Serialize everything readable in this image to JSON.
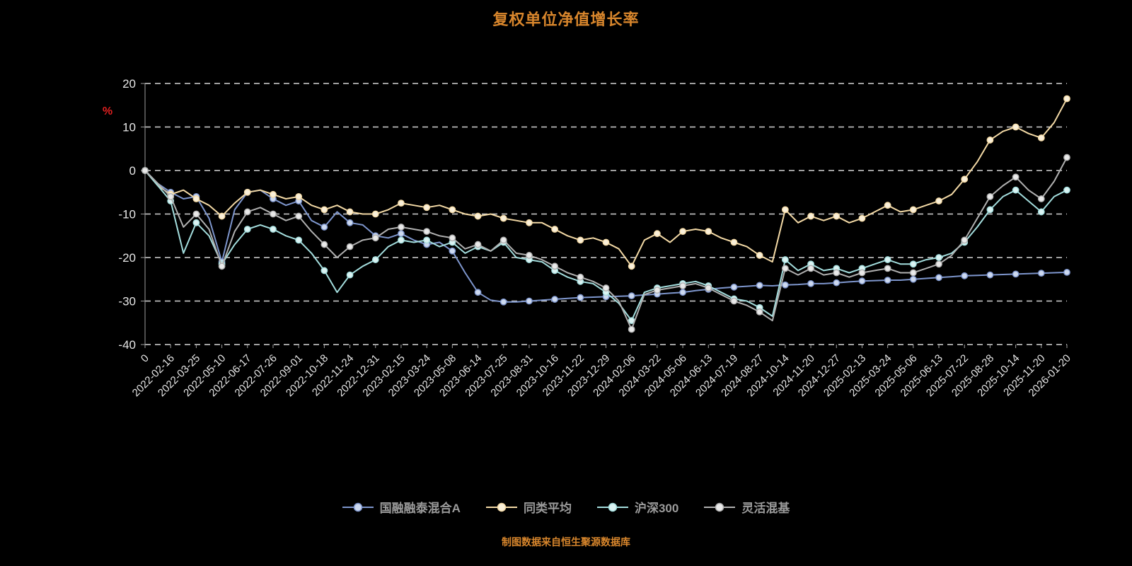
{
  "colors": {
    "background": "#000000",
    "title_text": "#d8862c",
    "source_text": "#d8862c",
    "axis_text": "#e6e6e6",
    "grid_line": "#d6d6d6",
    "axis_line": "#9e9e9e",
    "percent_label": "#e02020",
    "legend_text": "#9b9b9b"
  },
  "chart_data": {
    "type": "line",
    "title": "复权单位净值增长率",
    "source_note": "制图数据来自恒生聚源数据库",
    "ylabel": "%",
    "ylim": [
      -40,
      20
    ],
    "y_ticks": [
      20,
      10,
      0,
      -10,
      -20,
      -30,
      -40
    ],
    "grid": "horizontal-dashed",
    "legend_position": "bottom",
    "x_step_per_point": 0.5,
    "x_tick_labels": [
      "0",
      "2022-02-16",
      "2022-03-25",
      "2022-05-10",
      "2022-06-17",
      "2022-07-26",
      "2022-09-01",
      "2022-10-18",
      "2022-11-24",
      "2022-12-31",
      "2023-02-15",
      "2023-03-24",
      "2023-05-08",
      "2023-06-14",
      "2023-07-25",
      "2023-08-31",
      "2023-10-16",
      "2023-11-22",
      "2023-12-29",
      "2024-02-06",
      "2024-03-22",
      "2024-05-06",
      "2024-06-13",
      "2024-07-19",
      "2024-08-27",
      "2024-10-14",
      "2024-11-20",
      "2024-12-27",
      "2025-02-13",
      "2025-03-24",
      "2025-05-06",
      "2025-06-13",
      "2025-07-22",
      "2025-08-28",
      "2025-10-14",
      "2025-11-20",
      "2026-01-20"
    ],
    "series": [
      {
        "name": "国融融泰混合A",
        "color": "#7d95cc",
        "marker_fill": "#cdd9ef",
        "values": [
          0,
          -3,
          -5,
          -6.5,
          -6,
          -11,
          -21,
          -9,
          -5,
          -4.5,
          -6.5,
          -8,
          -7,
          -11.5,
          -13,
          -9.5,
          -12,
          -12.5,
          -15,
          -15.5,
          -14.5,
          -16,
          -17,
          -16.5,
          -18.5,
          -23.5,
          -28,
          -29.8,
          -30.2,
          -30.2,
          -30,
          -29.8,
          -29.6,
          -29.4,
          -29.2,
          -29.1,
          -29,
          -28.9,
          -28.8,
          -28.6,
          -28.4,
          -28.2,
          -28,
          -27.6,
          -27.3,
          -27,
          -26.8,
          -26.6,
          -26.4,
          -26.5,
          -26.3,
          -26.2,
          -26,
          -26,
          -25.8,
          -25.6,
          -25.4,
          -25.3,
          -25.2,
          -25.2,
          -25,
          -24.8,
          -24.6,
          -24.4,
          -24.2,
          -24.1,
          -24,
          -23.9,
          -23.8,
          -23.7,
          -23.6,
          -23.5,
          -23.4
        ]
      },
      {
        "name": "同类平均",
        "color": "#f3d9a5",
        "marker_fill": "#faf0da",
        "values": [
          0,
          -3.5,
          -5.5,
          -4.5,
          -6.5,
          -8,
          -10.5,
          -7.5,
          -5,
          -4.5,
          -5.5,
          -6.5,
          -6,
          -8,
          -9,
          -8,
          -9.5,
          -10,
          -10,
          -9,
          -7.5,
          -8,
          -8.5,
          -8,
          -9,
          -10,
          -10.5,
          -10,
          -11,
          -11.5,
          -12,
          -12,
          -13.5,
          -15,
          -16,
          -15.5,
          -16.5,
          -18,
          -22,
          -16,
          -14.5,
          -16.5,
          -14,
          -13.5,
          -14,
          -15.5,
          -16.5,
          -17.5,
          -19.5,
          -21,
          -9,
          -12,
          -10.5,
          -11.5,
          -10.5,
          -12,
          -11,
          -9.5,
          -8,
          -9.5,
          -9,
          -8,
          -7,
          -5.5,
          -2,
          2,
          7,
          9,
          10,
          8.5,
          7.5,
          11,
          16.5
        ]
      },
      {
        "name": "沪深300",
        "color": "#a3dddd",
        "marker_fill": "#dbf3f3",
        "values": [
          0,
          -3.5,
          -7,
          -19,
          -12,
          -15,
          -21.5,
          -17,
          -13.5,
          -12.5,
          -13.5,
          -15,
          -16,
          -19,
          -23,
          -28,
          -24,
          -22,
          -20.5,
          -17.5,
          -16,
          -16.5,
          -16,
          -17.5,
          -16.5,
          -19,
          -17.5,
          -18.5,
          -16.5,
          -20,
          -20.5,
          -21,
          -23,
          -24.5,
          -25.5,
          -26,
          -28,
          -30.5,
          -34.5,
          -28,
          -27,
          -26.5,
          -26,
          -25.5,
          -26.5,
          -28,
          -29.5,
          -30,
          -31.5,
          -33.5,
          -20.5,
          -23,
          -21.5,
          -23,
          -22.5,
          -23.5,
          -22.5,
          -21.5,
          -20.5,
          -21.5,
          -21.5,
          -20.5,
          -20,
          -19,
          -16.5,
          -13,
          -9,
          -6,
          -4.5,
          -7,
          -9.5,
          -6,
          -4.5
        ]
      },
      {
        "name": "灵活混基",
        "color": "#b0b0b0",
        "marker_fill": "#e9e9e9",
        "values": [
          0,
          -3,
          -6,
          -13,
          -10,
          -13.5,
          -22,
          -14,
          -9.5,
          -8.5,
          -10,
          -11.5,
          -10.5,
          -14,
          -17,
          -20,
          -17.5,
          -16,
          -15.5,
          -13.5,
          -13,
          -13.5,
          -14,
          -15,
          -15.5,
          -18,
          -17,
          -18.5,
          -16,
          -19,
          -19.5,
          -20.5,
          -22,
          -23.5,
          -24.5,
          -25.5,
          -27,
          -30,
          -36.5,
          -28.5,
          -27.5,
          -27,
          -26.5,
          -26,
          -27,
          -28.5,
          -30,
          -31,
          -32.5,
          -34.5,
          -22.5,
          -24,
          -22.5,
          -24,
          -23.5,
          -24.5,
          -23.5,
          -23,
          -22.5,
          -23.5,
          -23.5,
          -22.5,
          -21.5,
          -19.5,
          -16,
          -11,
          -6,
          -3.5,
          -1.5,
          -4.5,
          -6.5,
          -2.5,
          3
        ]
      }
    ]
  }
}
